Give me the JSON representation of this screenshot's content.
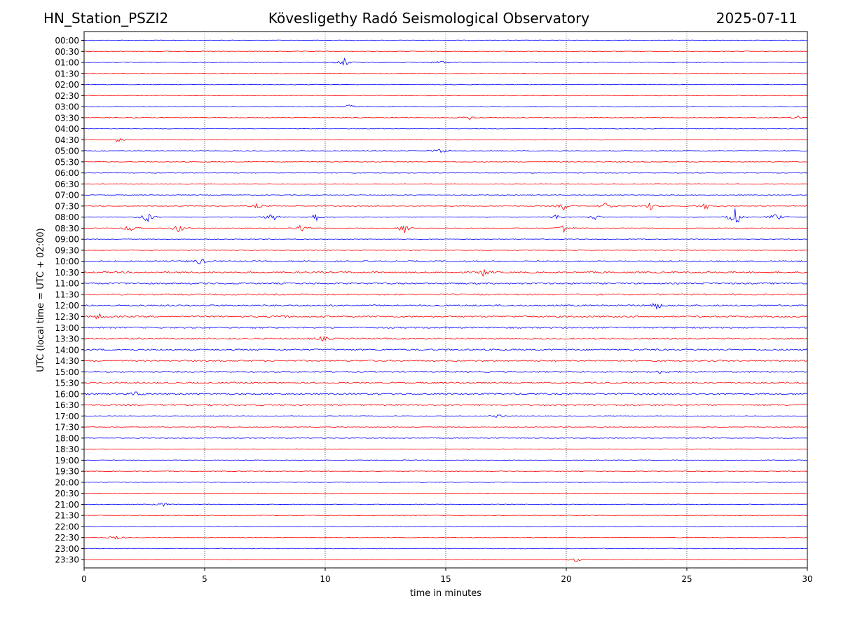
{
  "header": {
    "station": "HN_Station_PSZI2",
    "observatory": "Kövesligethy Radó Seismological Observatory",
    "date": "2025-07-11"
  },
  "chart_data": {
    "type": "line",
    "title": "Kövesligethy Radó Seismological Observatory",
    "xlabel": "time in minutes",
    "ylabel": "UTC (local time = UTC + 02:00)",
    "xlim": [
      0,
      30
    ],
    "xticks": [
      0,
      5,
      10,
      15,
      20,
      25,
      30
    ],
    "grid": "vertical dotted lines at 5-minute intervals",
    "series_colors": [
      "#0000ff",
      "#ff0000"
    ],
    "rows": [
      "00:00",
      "00:30",
      "01:00",
      "01:30",
      "02:00",
      "02:30",
      "03:00",
      "03:30",
      "04:00",
      "04:30",
      "05:00",
      "05:30",
      "06:00",
      "06:30",
      "07:00",
      "07:30",
      "08:00",
      "08:30",
      "09:00",
      "09:30",
      "10:00",
      "10:30",
      "11:00",
      "11:30",
      "12:00",
      "12:30",
      "13:00",
      "13:30",
      "14:00",
      "14:30",
      "15:00",
      "15:30",
      "16:00",
      "16:30",
      "17:00",
      "17:30",
      "18:00",
      "18:30",
      "19:00",
      "19:30",
      "20:00",
      "20:30",
      "21:00",
      "21:30",
      "22:00",
      "22:30",
      "23:00",
      "23:30"
    ],
    "events": [
      {
        "row": "01:00",
        "t": 10.8,
        "amp": 6
      },
      {
        "row": "01:00",
        "t": 14.8,
        "amp": 3
      },
      {
        "row": "03:00",
        "t": 11.0,
        "amp": 3
      },
      {
        "row": "03:30",
        "t": 16.0,
        "amp": 3
      },
      {
        "row": "03:30",
        "t": 29.6,
        "amp": 3
      },
      {
        "row": "04:30",
        "t": 1.4,
        "amp": 3
      },
      {
        "row": "05:00",
        "t": 14.8,
        "amp": 5
      },
      {
        "row": "07:30",
        "t": 7.2,
        "amp": 4
      },
      {
        "row": "07:30",
        "t": 19.9,
        "amp": 6
      },
      {
        "row": "07:30",
        "t": 21.6,
        "amp": 5
      },
      {
        "row": "07:30",
        "t": 23.5,
        "amp": 6
      },
      {
        "row": "07:30",
        "t": 25.8,
        "amp": 5
      },
      {
        "row": "08:00",
        "t": 2.6,
        "amp": 9
      },
      {
        "row": "08:00",
        "t": 7.8,
        "amp": 7
      },
      {
        "row": "08:00",
        "t": 9.6,
        "amp": 6
      },
      {
        "row": "08:00",
        "t": 19.6,
        "amp": 4
      },
      {
        "row": "08:00",
        "t": 21.2,
        "amp": 4
      },
      {
        "row": "08:00",
        "t": 27.0,
        "amp": 18
      },
      {
        "row": "08:00",
        "t": 28.7,
        "amp": 6
      },
      {
        "row": "08:30",
        "t": 1.9,
        "amp": 6
      },
      {
        "row": "08:30",
        "t": 3.9,
        "amp": 7
      },
      {
        "row": "08:30",
        "t": 9.0,
        "amp": 5
      },
      {
        "row": "08:30",
        "t": 13.3,
        "amp": 8
      },
      {
        "row": "08:30",
        "t": 19.9,
        "amp": 7
      },
      {
        "row": "10:00",
        "t": 4.8,
        "amp": 4
      },
      {
        "row": "10:30",
        "t": 16.6,
        "amp": 6
      },
      {
        "row": "12:00",
        "t": 23.7,
        "amp": 6
      },
      {
        "row": "12:30",
        "t": 0.6,
        "amp": 4
      },
      {
        "row": "12:30",
        "t": 8.2,
        "amp": 3
      },
      {
        "row": "13:30",
        "t": 9.9,
        "amp": 3
      },
      {
        "row": "15:00",
        "t": 24.0,
        "amp": 3
      },
      {
        "row": "16:00",
        "t": 2.2,
        "amp": 3
      },
      {
        "row": "17:00",
        "t": 17.2,
        "amp": 3
      },
      {
        "row": "21:00",
        "t": 3.3,
        "amp": 3
      },
      {
        "row": "22:30",
        "t": 1.3,
        "amp": 3
      },
      {
        "row": "23:30",
        "t": 20.4,
        "amp": 3
      }
    ]
  }
}
